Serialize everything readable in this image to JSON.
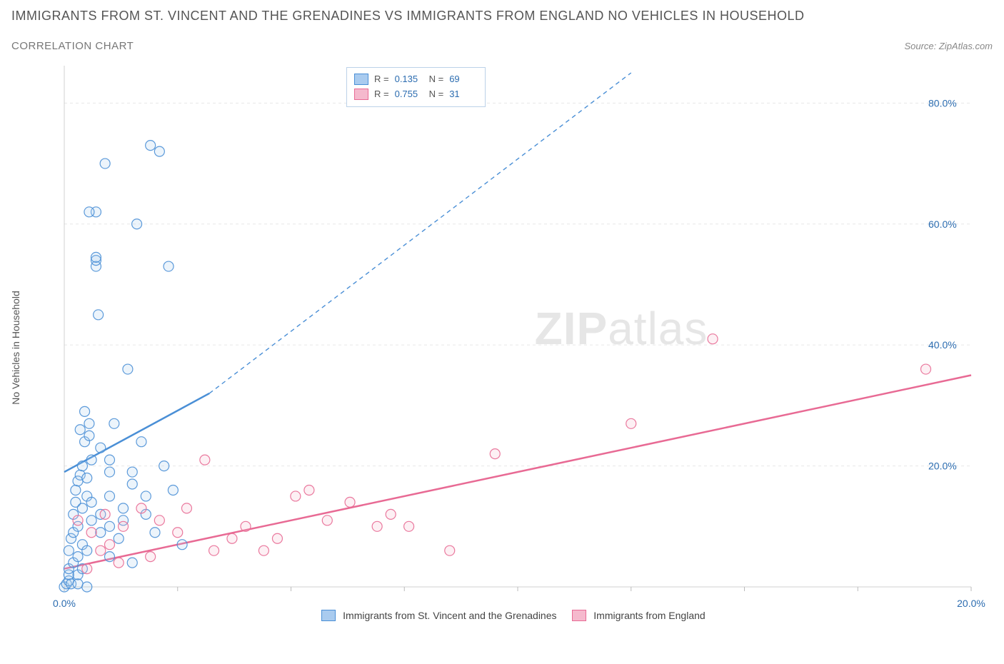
{
  "title": "IMMIGRANTS FROM ST. VINCENT AND THE GRENADINES VS IMMIGRANTS FROM ENGLAND NO VEHICLES IN HOUSEHOLD",
  "subtitle": "CORRELATION CHART",
  "source": "Source: ZipAtlas.com",
  "ylabel": "No Vehicles in Household",
  "watermark_a": "ZIP",
  "watermark_b": "atlas",
  "chart": {
    "type": "scatter",
    "background_color": "#ffffff",
    "grid_color": "#e6e6e6",
    "axis_color": "#d0d0d0",
    "tick_label_color": "#2b6cb0",
    "axis_label_color": "#555555",
    "xlim": [
      0,
      20
    ],
    "ylim": [
      0,
      85
    ],
    "xticks": [
      0,
      2.5,
      5,
      7.5,
      10,
      12.5,
      15,
      17.5,
      20
    ],
    "xticks_labeled": {
      "0": "0.0%",
      "20": "20.0%"
    },
    "yticks": [
      20,
      40,
      60,
      80
    ],
    "ytick_labels": [
      "20.0%",
      "40.0%",
      "60.0%",
      "80.0%"
    ],
    "marker_radius": 7,
    "marker_fill_opacity": 0.22,
    "marker_stroke_opacity": 0.9,
    "marker_stroke_width": 1.2,
    "trend_line_width_solid": 2.5,
    "trend_line_width_dash": 1.4,
    "trend_dash": "6 5"
  },
  "series": [
    {
      "key": "svg_grenadines",
      "label": "Immigrants from St. Vincent and the Grenadines",
      "color_stroke": "#4a8fd6",
      "color_fill": "#a9cbef",
      "R": "0.135",
      "N": "69",
      "trend": {
        "x1": 0,
        "y1": 19,
        "solid_x2": 3.2,
        "solid_y2": 32,
        "dash_x2": 12.5,
        "dash_y2": 85
      },
      "points": [
        [
          0.0,
          0.0
        ],
        [
          0.05,
          0.5
        ],
        [
          0.1,
          1.0
        ],
        [
          0.1,
          2.0
        ],
        [
          0.1,
          3.0
        ],
        [
          0.1,
          6.0
        ],
        [
          0.15,
          0.5
        ],
        [
          0.15,
          8.0
        ],
        [
          0.2,
          4.0
        ],
        [
          0.2,
          9.0
        ],
        [
          0.2,
          12.0
        ],
        [
          0.25,
          14.0
        ],
        [
          0.25,
          16.0
        ],
        [
          0.3,
          0.5
        ],
        [
          0.3,
          2.0
        ],
        [
          0.3,
          5.0
        ],
        [
          0.3,
          10.0
        ],
        [
          0.3,
          17.5
        ],
        [
          0.35,
          18.5
        ],
        [
          0.4,
          3.0
        ],
        [
          0.4,
          7.0
        ],
        [
          0.4,
          13.0
        ],
        [
          0.4,
          20.0
        ],
        [
          0.45,
          24.0
        ],
        [
          0.5,
          0.0
        ],
        [
          0.5,
          6.0
        ],
        [
          0.5,
          15.0
        ],
        [
          0.5,
          18.0
        ],
        [
          0.55,
          25.0
        ],
        [
          0.55,
          27.0
        ],
        [
          0.6,
          11.0
        ],
        [
          0.6,
          14.0
        ],
        [
          0.6,
          21.0
        ],
        [
          0.7,
          53.0
        ],
        [
          0.7,
          54.0
        ],
        [
          0.7,
          54.5
        ],
        [
          0.7,
          62.0
        ],
        [
          0.75,
          45.0
        ],
        [
          0.8,
          9.0
        ],
        [
          0.8,
          12.0
        ],
        [
          0.8,
          23.0
        ],
        [
          0.9,
          70.0
        ],
        [
          1.0,
          5.0
        ],
        [
          1.0,
          10.0
        ],
        [
          1.0,
          15.0
        ],
        [
          1.0,
          19.0
        ],
        [
          1.0,
          21.0
        ],
        [
          1.1,
          27.0
        ],
        [
          1.2,
          8.0
        ],
        [
          1.3,
          11.0
        ],
        [
          1.3,
          13.0
        ],
        [
          1.4,
          36.0
        ],
        [
          1.5,
          4.0
        ],
        [
          1.5,
          17.0
        ],
        [
          1.5,
          19.0
        ],
        [
          1.6,
          60.0
        ],
        [
          1.7,
          24.0
        ],
        [
          1.8,
          12.0
        ],
        [
          1.8,
          15.0
        ],
        [
          1.9,
          73.0
        ],
        [
          2.0,
          9.0
        ],
        [
          2.1,
          72.0
        ],
        [
          2.2,
          20.0
        ],
        [
          2.3,
          53.0
        ],
        [
          2.4,
          16.0
        ],
        [
          2.6,
          7.0
        ],
        [
          0.35,
          26.0
        ],
        [
          0.45,
          29.0
        ],
        [
          0.55,
          62.0
        ]
      ]
    },
    {
      "key": "england",
      "label": "Immigrants from England",
      "color_stroke": "#e86a94",
      "color_fill": "#f5b9cd",
      "R": "0.755",
      "N": "31",
      "trend": {
        "x1": 0,
        "y1": 3,
        "solid_x2": 20,
        "solid_y2": 35
      },
      "points": [
        [
          0.3,
          11.0
        ],
        [
          0.5,
          3.0
        ],
        [
          0.6,
          9.0
        ],
        [
          0.8,
          6.0
        ],
        [
          0.9,
          12.0
        ],
        [
          1.0,
          7.0
        ],
        [
          1.2,
          4.0
        ],
        [
          1.3,
          10.0
        ],
        [
          1.7,
          13.0
        ],
        [
          1.9,
          5.0
        ],
        [
          2.1,
          11.0
        ],
        [
          2.5,
          9.0
        ],
        [
          2.7,
          13.0
        ],
        [
          3.1,
          21.0
        ],
        [
          3.3,
          6.0
        ],
        [
          3.7,
          8.0
        ],
        [
          4.0,
          10.0
        ],
        [
          4.4,
          6.0
        ],
        [
          4.7,
          8.0
        ],
        [
          5.1,
          15.0
        ],
        [
          5.4,
          16.0
        ],
        [
          5.8,
          11.0
        ],
        [
          6.3,
          14.0
        ],
        [
          6.9,
          10.0
        ],
        [
          7.2,
          12.0
        ],
        [
          7.6,
          10.0
        ],
        [
          8.5,
          6.0
        ],
        [
          9.5,
          22.0
        ],
        [
          12.5,
          27.0
        ],
        [
          14.3,
          41.0
        ],
        [
          19.0,
          36.0
        ]
      ]
    }
  ],
  "legend_box": {
    "labels": {
      "R": "R =",
      "N": "N ="
    }
  },
  "bottom_legend": {
    "items": [
      {
        "series": 0
      },
      {
        "series": 1
      }
    ]
  }
}
